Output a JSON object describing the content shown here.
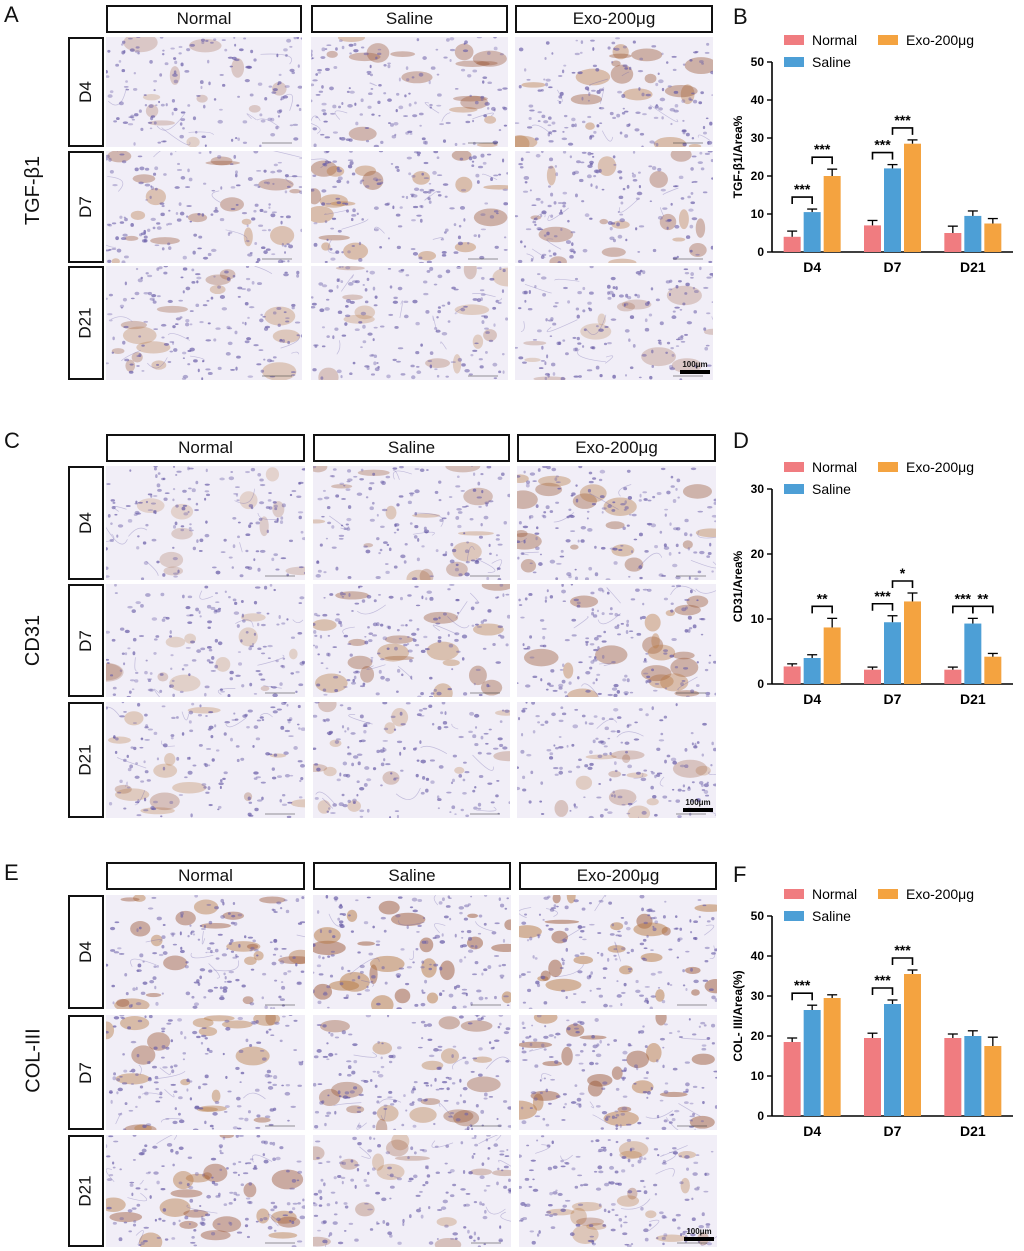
{
  "figure": {
    "panel_letters": [
      "A",
      "B",
      "C",
      "D",
      "E",
      "F"
    ],
    "column_headers": [
      "Normal",
      "Saline",
      "Exo-200μg"
    ],
    "row_labels": [
      "D4",
      "D7",
      "D21"
    ],
    "stain_labels": [
      "TGF-β1",
      "CD31",
      "COL-III"
    ],
    "scale_bar_label": "100μm",
    "tissue_colors": {
      "background": "#f1eef7",
      "nuclei": "#6b5fa8",
      "dab": "#9c5a3a",
      "dab_heavy": "#b77a45"
    }
  },
  "chart_data": [
    {
      "panel": "B",
      "type": "bar",
      "ylabel": "TGF-β1/Area%",
      "ylim": [
        0,
        50
      ],
      "yticks": [
        0,
        10,
        20,
        30,
        40,
        50
      ],
      "categories": [
        "D4",
        "D7",
        "D21"
      ],
      "legend": [
        "Normal",
        "Saline",
        "Exo-200μg"
      ],
      "colors": [
        "#f07c80",
        "#4d9fd6",
        "#f4a340"
      ],
      "series": [
        {
          "name": "Normal",
          "values": [
            4,
            7,
            5
          ],
          "errors": [
            1.5,
            1.3,
            1.8
          ]
        },
        {
          "name": "Saline",
          "values": [
            10.5,
            22,
            9.5
          ],
          "errors": [
            0.8,
            1.0,
            1.3
          ]
        },
        {
          "name": "Exo-200μg",
          "values": [
            20,
            28.5,
            7.5
          ],
          "errors": [
            1.8,
            1.0,
            1.3
          ]
        }
      ],
      "annotations": [
        {
          "category": 0,
          "from": 0,
          "to": 1,
          "label": "***"
        },
        {
          "category": 0,
          "from": 1,
          "to": 2,
          "label": "***"
        },
        {
          "category": 1,
          "from": 0,
          "to": 1,
          "label": "***"
        },
        {
          "category": 1,
          "from": 1,
          "to": 2,
          "label": "***"
        }
      ]
    },
    {
      "panel": "D",
      "type": "bar",
      "ylabel": "CD31/Area%",
      "ylim": [
        0,
        30
      ],
      "yticks": [
        0,
        10,
        20,
        30
      ],
      "categories": [
        "D4",
        "D7",
        "D21"
      ],
      "legend": [
        "Normal",
        "Saline",
        "Exo-200μg"
      ],
      "colors": [
        "#f07c80",
        "#4d9fd6",
        "#f4a340"
      ],
      "series": [
        {
          "name": "Normal",
          "values": [
            2.7,
            2.2,
            2.2
          ],
          "errors": [
            0.4,
            0.4,
            0.4
          ]
        },
        {
          "name": "Saline",
          "values": [
            4,
            9.5,
            9.3
          ],
          "errors": [
            0.5,
            1.0,
            0.8
          ]
        },
        {
          "name": "Exo-200μg",
          "values": [
            8.7,
            12.7,
            4.2
          ],
          "errors": [
            1.4,
            1.3,
            0.5
          ]
        }
      ],
      "annotations": [
        {
          "category": 0,
          "from": 1,
          "to": 2,
          "label": "**"
        },
        {
          "category": 1,
          "from": 0,
          "to": 1,
          "label": "***"
        },
        {
          "category": 1,
          "from": 1,
          "to": 2,
          "label": "*"
        },
        {
          "category": 2,
          "from": 0,
          "to": 1,
          "label": "***"
        },
        {
          "category": 2,
          "from": 1,
          "to": 2,
          "label": "**"
        }
      ]
    },
    {
      "panel": "F",
      "type": "bar",
      "ylabel": "COL- III/Area(%)",
      "ylim": [
        0,
        50
      ],
      "yticks": [
        0,
        10,
        20,
        30,
        40,
        50
      ],
      "categories": [
        "D4",
        "D7",
        "D21"
      ],
      "legend": [
        "Normal",
        "Saline",
        "Exo-200μg"
      ],
      "colors": [
        "#f07c80",
        "#4d9fd6",
        "#f4a340"
      ],
      "series": [
        {
          "name": "Normal",
          "values": [
            18.5,
            19.5,
            19.5
          ],
          "errors": [
            1.0,
            1.2,
            1.0
          ]
        },
        {
          "name": "Saline",
          "values": [
            26.5,
            28,
            20
          ],
          "errors": [
            1.2,
            1.0,
            1.3
          ]
        },
        {
          "name": "Exo-200μg",
          "values": [
            29.5,
            35.5,
            17.5
          ],
          "errors": [
            0.8,
            1.0,
            2.2
          ]
        }
      ],
      "annotations": [
        {
          "category": 0,
          "from": 0,
          "to": 1,
          "label": "***"
        },
        {
          "category": 1,
          "from": 0,
          "to": 1,
          "label": "***"
        },
        {
          "category": 1,
          "from": 1,
          "to": 2,
          "label": "***"
        }
      ]
    }
  ]
}
